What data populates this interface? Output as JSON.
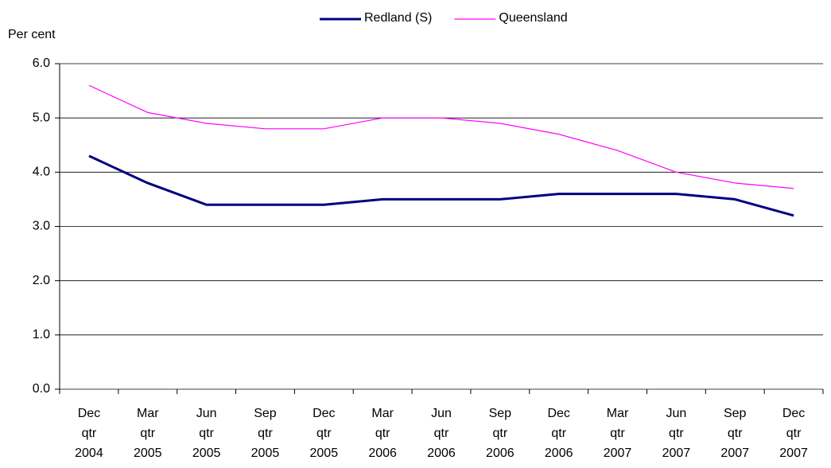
{
  "chart_data": {
    "type": "line",
    "y_axis_label": "Per cent",
    "categories": [
      "Dec qtr 2004",
      "Mar qtr 2005",
      "Jun qtr 2005",
      "Sep qtr 2005",
      "Dec qtr 2005",
      "Mar qtr 2006",
      "Jun qtr 2006",
      "Sep qtr 2006",
      "Dec qtr 2006",
      "Mar qtr 2007",
      "Jun qtr 2007",
      "Sep qtr 2007",
      "Dec qtr 2007"
    ],
    "series": [
      {
        "name": "Redland (S)",
        "color": "#000080",
        "width": 3,
        "values": [
          4.3,
          3.8,
          3.4,
          3.4,
          3.4,
          3.5,
          3.5,
          3.5,
          3.6,
          3.6,
          3.6,
          3.5,
          3.2
        ]
      },
      {
        "name": "Queensland",
        "color": "#ff00ff",
        "width": 1.2,
        "values": [
          5.6,
          5.1,
          4.9,
          4.8,
          4.8,
          5.0,
          5.0,
          4.9,
          4.7,
          4.4,
          4.0,
          3.8,
          3.7
        ]
      }
    ],
    "ylim": [
      0,
      6
    ],
    "yticks": [
      {
        "value": 0,
        "label": "0.0"
      },
      {
        "value": 1,
        "label": "1.0"
      },
      {
        "value": 2,
        "label": "2.0"
      },
      {
        "value": 3,
        "label": "3.0"
      },
      {
        "value": 4,
        "label": "4.0"
      },
      {
        "value": 5,
        "label": "5.0"
      },
      {
        "value": 6,
        "label": "6.0"
      }
    ],
    "grid": true,
    "legend": "top"
  }
}
